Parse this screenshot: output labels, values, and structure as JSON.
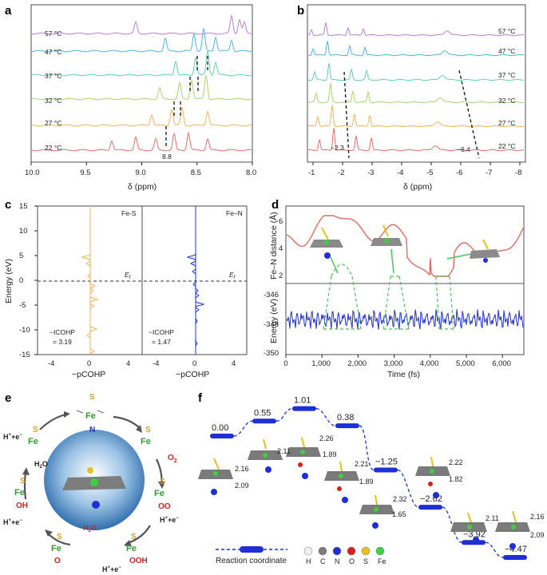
{
  "panels": {
    "a": {
      "label": "a",
      "xlabel": "δ (ppm)",
      "xticks": [
        "10.0",
        "9.5",
        "9.0",
        "8.5",
        "8.0"
      ],
      "temps": [
        "57 °C",
        "47 °C",
        "37 °C",
        "32 °C",
        "27 °C",
        "22 °C"
      ],
      "annotation": "8.8",
      "colors": [
        "#b87fd6",
        "#49b6e0",
        "#5fd4a4",
        "#a8d66a",
        "#f0b35a",
        "#ec6b6b"
      ]
    },
    "b": {
      "label": "b",
      "xlabel": "δ (ppm)",
      "xticks": [
        "-1",
        "-2",
        "-3",
        "-4",
        "-5",
        "-6",
        "-7",
        "-8"
      ],
      "temps": [
        "57 °C",
        "47 °C",
        "37 °C",
        "32 °C",
        "27 °C",
        "22 °C"
      ],
      "annotation_left": "−2.3",
      "annotation_right": "−6.4"
    },
    "c": {
      "label": "c",
      "ylabel": "Energy (eV)",
      "xlabel": "−pCOHP",
      "yticks": [
        "15",
        "10",
        "5",
        "0",
        "-5",
        "-10",
        "-15"
      ],
      "xticks_left": [
        "-4",
        "0",
        "4"
      ],
      "xticks_right": [
        "-4",
        "0",
        "4"
      ],
      "fes_label": "Fe-S",
      "fen_label": "Fe–N",
      "ef_label": "E",
      "ef_sub": "f",
      "icohp_left_1": "−ICOHP",
      "icohp_left_2": "= 3.19",
      "icohp_right_1": "−ICOHP",
      "icohp_right_2": "= 1.47",
      "colors": {
        "fes": "#f0b35a",
        "fen": "#1f2fd6"
      }
    },
    "d": {
      "label": "d",
      "ylabel_top": "Fe–N distance (Å)",
      "ylabel_bottom": "Energy (eV)",
      "xlabel": "Time (fs)",
      "yticks_top": [
        "6",
        "4",
        "2"
      ],
      "yticks_bottom": [
        "-346",
        "-348",
        "-350"
      ],
      "xticks": [
        "0",
        "1,000",
        "2,000",
        "3,000",
        "4,000",
        "5,000",
        "6,000"
      ],
      "colors": {
        "distance": "#e06a5e",
        "energy": "#1f2fd6",
        "highlight": "#4cc05a"
      }
    },
    "e": {
      "label": "e",
      "species": [
        "Fe",
        "S",
        "N",
        "O",
        "OH",
        "OO",
        "OOH",
        "O"
      ],
      "o2": "O",
      "o2_sub": "2",
      "h2o_1": "H",
      "h2o_1_sub": "2",
      "h2o_1_end": "O",
      "h2o_2": "H",
      "h2o_2_sub": "2",
      "h2o_2_end": "O",
      "proton_step": "H",
      "proton_sup": "+",
      "electron": "+e",
      "electron_sup": "−"
    },
    "f": {
      "label": "f",
      "energies": [
        0.0,
        0.55,
        1.01,
        0.38,
        -1.25,
        -2.62,
        -3.92,
        -4.47
      ],
      "energy_labels": [
        "0.00",
        "0.55",
        "1.01",
        "0.38",
        "−1.25",
        "−2.62",
        "−3.92",
        "−4.47"
      ],
      "distances": {
        "s0": [
          "2.16",
          "2.09"
        ],
        "s2": [
          "2.26",
          "1.89"
        ],
        "s3": [
          "2.21",
          "1.89"
        ],
        "s4": [
          "2.32",
          "1.65"
        ],
        "s5": [
          "2.22",
          "1.82"
        ],
        "s6": [
          "2.11"
        ],
        "s7": [
          "2.16",
          "2.09"
        ],
        "s1": [
          "2.11"
        ]
      },
      "legend_label": "Reaction coordinate",
      "atom_legend": [
        "H",
        "C",
        "N",
        "O",
        "S",
        "Fe"
      ],
      "atom_colors": [
        "#f2f2f2",
        "#7a7a7a",
        "#1f2fd6",
        "#d62020",
        "#e8c020",
        "#3fcf3f"
      ],
      "bar_color": "#1f2fd6"
    }
  }
}
